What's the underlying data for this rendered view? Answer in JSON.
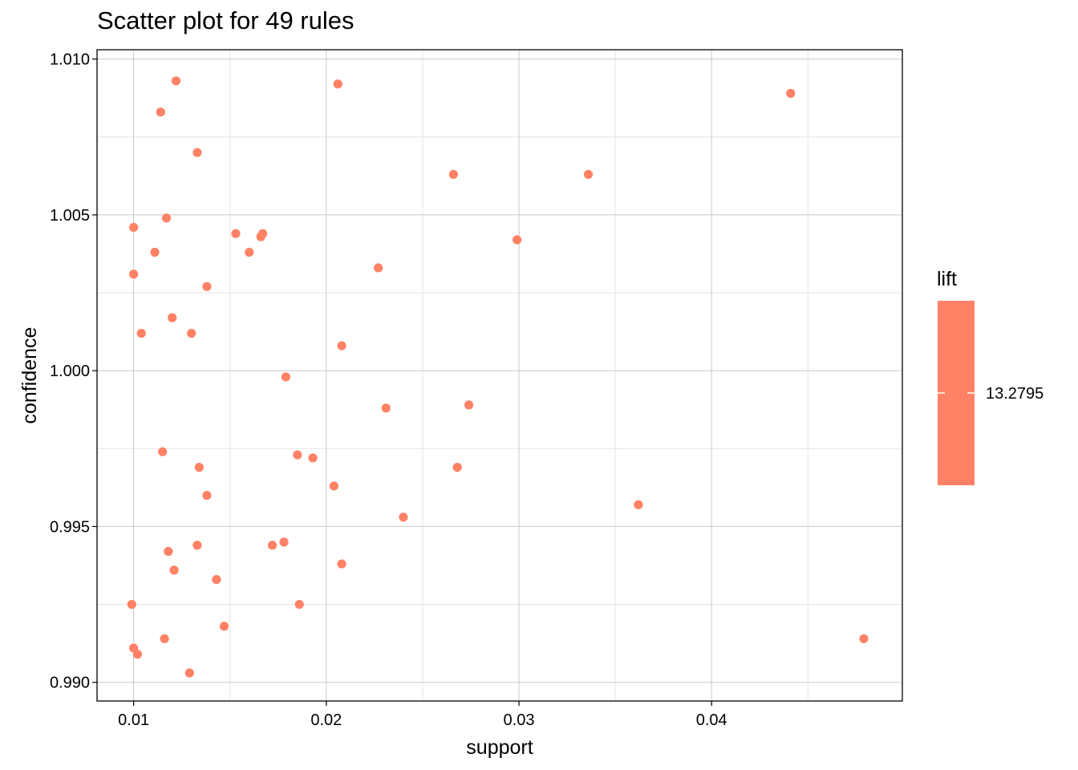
{
  "chart_data": {
    "type": "scatter",
    "title": "Scatter plot for 49 rules",
    "xlabel": "support",
    "ylabel": "confidence",
    "xlim": [
      0.0081,
      0.0499
    ],
    "ylim": [
      0.9894,
      1.0103
    ],
    "xticks": [
      0.01,
      0.02,
      0.03,
      0.04
    ],
    "xtick_labels": [
      "0.01",
      "0.02",
      "0.03",
      "0.04"
    ],
    "yticks": [
      0.99,
      0.995,
      1.0,
      1.005,
      1.01
    ],
    "ytick_labels": [
      "0.990",
      "0.995",
      "1.000",
      "1.005",
      "1.010"
    ],
    "grid": true,
    "point_color": "#FF8166",
    "legend": {
      "title": "lift",
      "placement": "right",
      "value_label": "13.2795",
      "color": "#FF8166"
    },
    "series": [
      {
        "x": [
          0.0122,
          0.0206,
          0.0441,
          0.0114,
          0.0133,
          0.0266,
          0.0336,
          0.0117,
          0.01,
          0.0153,
          0.0166,
          0.0167,
          0.0299,
          0.0111,
          0.016,
          0.01,
          0.0227,
          0.0138,
          0.012,
          0.0104,
          0.013,
          0.0208,
          0.0179,
          0.0274,
          0.0231,
          0.0115,
          0.0185,
          0.0193,
          0.0134,
          0.0268,
          0.0204,
          0.0138,
          0.0362,
          0.024,
          0.0118,
          0.0133,
          0.0172,
          0.0178,
          0.0208,
          0.0121,
          0.0143,
          0.0099,
          0.0186,
          0.0147,
          0.0116,
          0.0479,
          0.01,
          0.0102,
          0.0129
        ],
        "y": [
          1.0093,
          1.0092,
          1.0089,
          1.0083,
          1.007,
          1.0063,
          1.0063,
          1.0049,
          1.0046,
          1.0044,
          1.0043,
          1.0044,
          1.0042,
          1.0038,
          1.0038,
          1.0031,
          1.0033,
          1.0027,
          1.0017,
          1.0012,
          1.0012,
          1.0008,
          0.9998,
          0.9989,
          0.9988,
          0.9974,
          0.9973,
          0.9972,
          0.9969,
          0.9969,
          0.9963,
          0.996,
          0.9957,
          0.9953,
          0.9942,
          0.9944,
          0.9944,
          0.9945,
          0.9938,
          0.9936,
          0.9933,
          0.9925,
          0.9925,
          0.9918,
          0.9914,
          0.9914,
          0.9911,
          0.9909,
          0.9903
        ]
      }
    ]
  }
}
